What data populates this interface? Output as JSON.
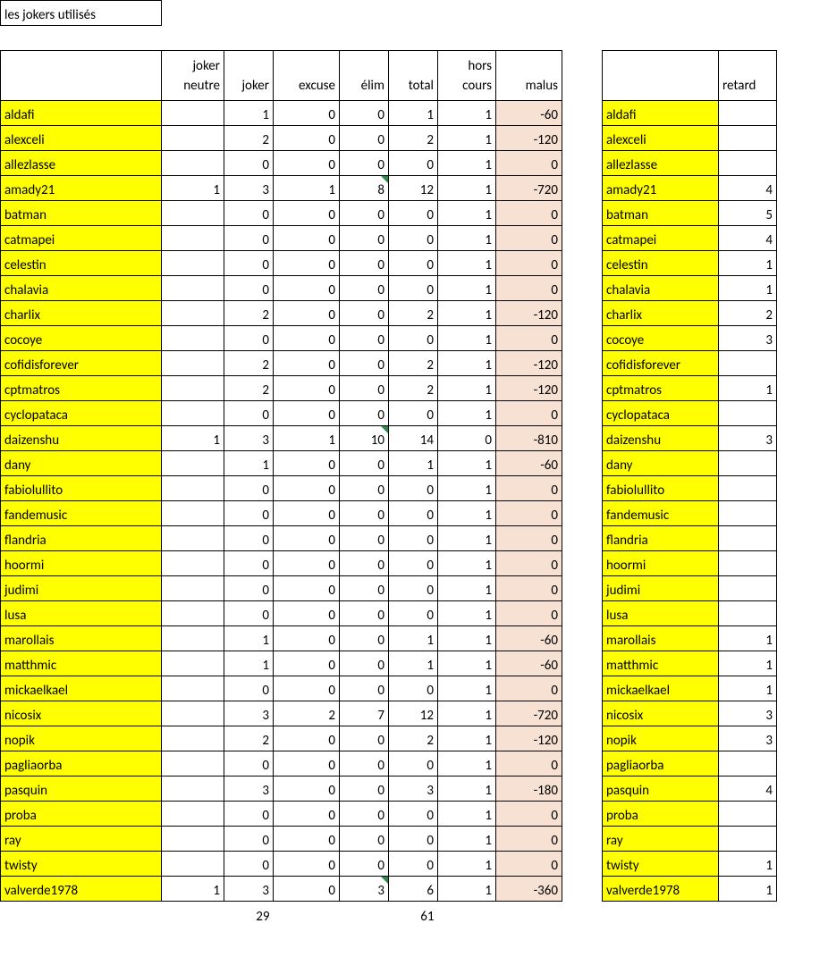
{
  "title": "les jokers utilisés",
  "headers": {
    "joker_neutre_top": "joker",
    "joker_neutre_bot": "neutre",
    "joker": "joker",
    "excuse": "excuse",
    "elim": "élim",
    "total": "total",
    "hors_top": "hors",
    "hors_bot": "cours",
    "malus": "malus",
    "retard": "retard"
  },
  "rows": [
    {
      "name": "aldafi",
      "jn": "",
      "j": 1,
      "ex": 0,
      "el": 0,
      "tot": 1,
      "hc": 1,
      "mal": -60,
      "ret": "",
      "flag": false
    },
    {
      "name": "alexceli",
      "jn": "",
      "j": 2,
      "ex": 0,
      "el": 0,
      "tot": 2,
      "hc": 1,
      "mal": -120,
      "ret": "",
      "flag": false
    },
    {
      "name": "allezlasse",
      "jn": "",
      "j": 0,
      "ex": 0,
      "el": 0,
      "tot": 0,
      "hc": 1,
      "mal": 0,
      "ret": "",
      "flag": false
    },
    {
      "name": "amady21",
      "jn": 1,
      "j": 3,
      "ex": 1,
      "el": 8,
      "tot": 12,
      "hc": 1,
      "mal": -720,
      "ret": 4,
      "flag": true
    },
    {
      "name": "batman",
      "jn": "",
      "j": 0,
      "ex": 0,
      "el": 0,
      "tot": 0,
      "hc": 1,
      "mal": 0,
      "ret": 5,
      "flag": false
    },
    {
      "name": "catmapei",
      "jn": "",
      "j": 0,
      "ex": 0,
      "el": 0,
      "tot": 0,
      "hc": 1,
      "mal": 0,
      "ret": 4,
      "flag": false
    },
    {
      "name": "celestin",
      "jn": "",
      "j": 0,
      "ex": 0,
      "el": 0,
      "tot": 0,
      "hc": 1,
      "mal": 0,
      "ret": 1,
      "flag": false
    },
    {
      "name": "chalavia",
      "jn": "",
      "j": 0,
      "ex": 0,
      "el": 0,
      "tot": 0,
      "hc": 1,
      "mal": 0,
      "ret": 1,
      "flag": false
    },
    {
      "name": "charlix",
      "jn": "",
      "j": 2,
      "ex": 0,
      "el": 0,
      "tot": 2,
      "hc": 1,
      "mal": -120,
      "ret": 2,
      "flag": false
    },
    {
      "name": "cocoye",
      "jn": "",
      "j": 0,
      "ex": 0,
      "el": 0,
      "tot": 0,
      "hc": 1,
      "mal": 0,
      "ret": 3,
      "flag": false
    },
    {
      "name": "cofidisforever",
      "jn": "",
      "j": 2,
      "ex": 0,
      "el": 0,
      "tot": 2,
      "hc": 1,
      "mal": -120,
      "ret": "",
      "flag": false
    },
    {
      "name": "cptmatros",
      "jn": "",
      "j": 2,
      "ex": 0,
      "el": 0,
      "tot": 2,
      "hc": 1,
      "mal": -120,
      "ret": 1,
      "flag": false
    },
    {
      "name": "cyclopataca",
      "jn": "",
      "j": 0,
      "ex": 0,
      "el": 0,
      "tot": 0,
      "hc": 1,
      "mal": 0,
      "ret": "",
      "flag": false
    },
    {
      "name": "daizenshu",
      "jn": 1,
      "j": 3,
      "ex": 1,
      "el": 10,
      "tot": 14,
      "hc": 0,
      "mal": -810,
      "ret": 3,
      "flag": true
    },
    {
      "name": "dany",
      "jn": "",
      "j": 1,
      "ex": 0,
      "el": 0,
      "tot": 1,
      "hc": 1,
      "mal": -60,
      "ret": "",
      "flag": false
    },
    {
      "name": "fabiolullito",
      "jn": "",
      "j": 0,
      "ex": 0,
      "el": 0,
      "tot": 0,
      "hc": 1,
      "mal": 0,
      "ret": "",
      "flag": false
    },
    {
      "name": "fandemusic",
      "jn": "",
      "j": 0,
      "ex": 0,
      "el": 0,
      "tot": 0,
      "hc": 1,
      "mal": 0,
      "ret": "",
      "flag": false
    },
    {
      "name": "flandria",
      "jn": "",
      "j": 0,
      "ex": 0,
      "el": 0,
      "tot": 0,
      "hc": 1,
      "mal": 0,
      "ret": "",
      "flag": false
    },
    {
      "name": "hoormi",
      "jn": "",
      "j": 0,
      "ex": 0,
      "el": 0,
      "tot": 0,
      "hc": 1,
      "mal": 0,
      "ret": "",
      "flag": false
    },
    {
      "name": "judimi",
      "jn": "",
      "j": 0,
      "ex": 0,
      "el": 0,
      "tot": 0,
      "hc": 1,
      "mal": 0,
      "ret": "",
      "flag": false
    },
    {
      "name": "lusa",
      "jn": "",
      "j": 0,
      "ex": 0,
      "el": 0,
      "tot": 0,
      "hc": 1,
      "mal": 0,
      "ret": "",
      "flag": false
    },
    {
      "name": "marollais",
      "jn": "",
      "j": 1,
      "ex": 0,
      "el": 0,
      "tot": 1,
      "hc": 1,
      "mal": -60,
      "ret": 1,
      "flag": false
    },
    {
      "name": "matthmic",
      "jn": "",
      "j": 1,
      "ex": 0,
      "el": 0,
      "tot": 1,
      "hc": 1,
      "mal": -60,
      "ret": 1,
      "flag": false
    },
    {
      "name": "mickaelkael",
      "jn": "",
      "j": 0,
      "ex": 0,
      "el": 0,
      "tot": 0,
      "hc": 1,
      "mal": 0,
      "ret": 1,
      "flag": false
    },
    {
      "name": "nicosix",
      "jn": "",
      "j": 3,
      "ex": 2,
      "el": 7,
      "tot": 12,
      "hc": 1,
      "mal": -720,
      "ret": 3,
      "flag": false
    },
    {
      "name": "nopik",
      "jn": "",
      "j": 2,
      "ex": 0,
      "el": 0,
      "tot": 2,
      "hc": 1,
      "mal": -120,
      "ret": 3,
      "flag": false
    },
    {
      "name": "pagliaorba",
      "jn": "",
      "j": 0,
      "ex": 0,
      "el": 0,
      "tot": 0,
      "hc": 1,
      "mal": 0,
      "ret": "",
      "flag": false
    },
    {
      "name": "pasquin",
      "jn": "",
      "j": 3,
      "ex": 0,
      "el": 0,
      "tot": 3,
      "hc": 1,
      "mal": -180,
      "ret": 4,
      "flag": false
    },
    {
      "name": "proba",
      "jn": "",
      "j": 0,
      "ex": 0,
      "el": 0,
      "tot": 0,
      "hc": 1,
      "mal": 0,
      "ret": "",
      "flag": false
    },
    {
      "name": "ray",
      "jn": "",
      "j": 0,
      "ex": 0,
      "el": 0,
      "tot": 0,
      "hc": 1,
      "mal": 0,
      "ret": "",
      "flag": false
    },
    {
      "name": "twisty",
      "jn": "",
      "j": 0,
      "ex": 0,
      "el": 0,
      "tot": 0,
      "hc": 1,
      "mal": 0,
      "ret": 1,
      "flag": false
    },
    {
      "name": "valverde1978",
      "jn": 1,
      "j": 3,
      "ex": 0,
      "el": 3,
      "tot": 6,
      "hc": 1,
      "mal": -360,
      "ret": 1,
      "flag": true
    }
  ],
  "totals": {
    "joker": 29,
    "total": 61
  }
}
